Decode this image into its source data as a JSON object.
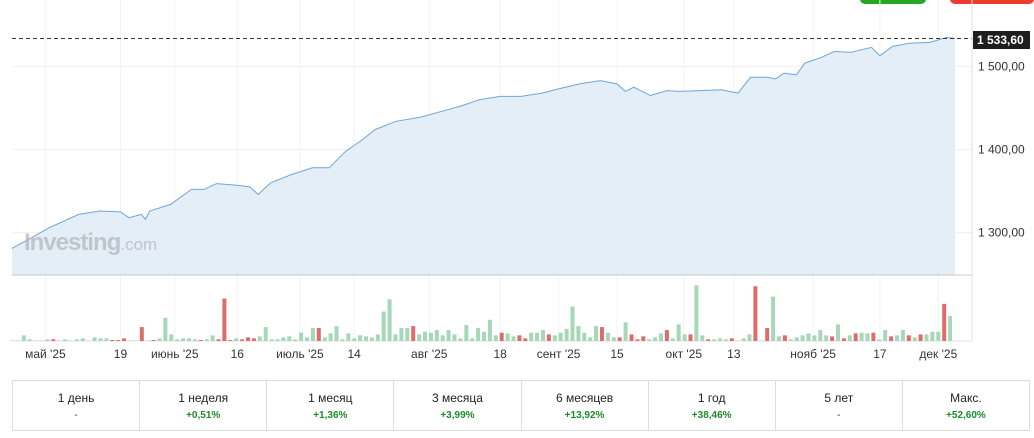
{
  "toolbar": {
    "buy_color": "#22a822",
    "sell_color": "#ee3b2f"
  },
  "watermark": {
    "brand": "Investing",
    "suffix": ".com"
  },
  "colors": {
    "line": "#6fa6d6",
    "area": "#e4eef7",
    "vol_up": "#a6d7b9",
    "vol_down": "#e06b6b",
    "vol_flat": "#dfe3e6",
    "positive": "#1a8a2c"
  },
  "chart_data": {
    "type": "area",
    "last_price_label": "1 533,60",
    "last_price": 1533.6,
    "ylim": [
      1249,
      1580
    ],
    "y_ticks": [
      {
        "value": 1300,
        "label": "1 300,00"
      },
      {
        "value": 1400,
        "label": "1 400,00"
      },
      {
        "value": 1500,
        "label": "1 500,00"
      }
    ],
    "x_range": [
      "2025-04-23",
      "2025-12-05"
    ],
    "x_ticks": [
      {
        "date": "2025-05-01",
        "label": "май '25"
      },
      {
        "date": "2025-05-19",
        "label": "19"
      },
      {
        "date": "2025-06-01",
        "label": "июнь '25"
      },
      {
        "date": "2025-06-16",
        "label": "16"
      },
      {
        "date": "2025-07-01",
        "label": "июль '25"
      },
      {
        "date": "2025-07-14",
        "label": "14"
      },
      {
        "date": "2025-08-01",
        "label": "авг '25"
      },
      {
        "date": "2025-08-18",
        "label": "18"
      },
      {
        "date": "2025-09-01",
        "label": "сент '25"
      },
      {
        "date": "2025-09-15",
        "label": "15"
      },
      {
        "date": "2025-10-01",
        "label": "окт '25"
      },
      {
        "date": "2025-10-13",
        "label": "13"
      },
      {
        "date": "2025-11-01",
        "label": "нояб '25"
      },
      {
        "date": "2025-11-17",
        "label": "17"
      },
      {
        "date": "2025-12-01",
        "label": "дек '25"
      }
    ],
    "price": [
      [
        "2025-04-23",
        1281
      ],
      [
        "2025-04-27",
        1292
      ],
      [
        "2025-05-02",
        1306
      ],
      [
        "2025-05-09",
        1322
      ],
      [
        "2025-05-14",
        1326
      ],
      [
        "2025-05-19",
        1325
      ],
      [
        "2025-05-21",
        1318
      ],
      [
        "2025-05-24",
        1322
      ],
      [
        "2025-05-25",
        1316
      ],
      [
        "2025-05-26",
        1326
      ],
      [
        "2025-05-31",
        1334
      ],
      [
        "2025-06-05",
        1352
      ],
      [
        "2025-06-08",
        1352
      ],
      [
        "2025-06-11",
        1359
      ],
      [
        "2025-06-16",
        1357
      ],
      [
        "2025-06-19",
        1355
      ],
      [
        "2025-06-21",
        1346
      ],
      [
        "2025-06-24",
        1360
      ],
      [
        "2025-06-29",
        1370
      ],
      [
        "2025-07-04",
        1378
      ],
      [
        "2025-07-08",
        1378
      ],
      [
        "2025-07-12",
        1398
      ],
      [
        "2025-07-16",
        1412
      ],
      [
        "2025-07-19",
        1424
      ],
      [
        "2025-07-24",
        1434
      ],
      [
        "2025-07-30",
        1439
      ],
      [
        "2025-08-04",
        1446
      ],
      [
        "2025-08-09",
        1453
      ],
      [
        "2025-08-13",
        1460
      ],
      [
        "2025-08-18",
        1464
      ],
      [
        "2025-08-23",
        1464
      ],
      [
        "2025-08-28",
        1468
      ],
      [
        "2025-09-01",
        1473
      ],
      [
        "2025-09-06",
        1479
      ],
      [
        "2025-09-11",
        1483
      ],
      [
        "2025-09-15",
        1479
      ],
      [
        "2025-09-17",
        1470
      ],
      [
        "2025-09-19",
        1475
      ],
      [
        "2025-09-23",
        1465
      ],
      [
        "2025-09-27",
        1471
      ],
      [
        "2025-09-30",
        1470
      ],
      [
        "2025-10-05",
        1471
      ],
      [
        "2025-10-10",
        1472
      ],
      [
        "2025-10-14",
        1468
      ],
      [
        "2025-10-17",
        1487
      ],
      [
        "2025-10-21",
        1487
      ],
      [
        "2025-10-23",
        1485
      ],
      [
        "2025-10-25",
        1492
      ],
      [
        "2025-10-28",
        1490
      ],
      [
        "2025-10-30",
        1504
      ],
      [
        "2025-11-03",
        1511
      ],
      [
        "2025-11-06",
        1518
      ],
      [
        "2025-11-10",
        1517
      ],
      [
        "2025-11-15",
        1523
      ],
      [
        "2025-11-17",
        1513
      ],
      [
        "2025-11-20",
        1524
      ],
      [
        "2025-11-24",
        1528
      ],
      [
        "2025-11-29",
        1529
      ],
      [
        "2025-12-03",
        1535
      ],
      [
        "2025-12-05",
        1533.6
      ]
    ],
    "volume": [
      [
        2,
        "flat"
      ],
      [
        2,
        "flat"
      ],
      [
        17,
        "up"
      ],
      [
        5,
        "up"
      ],
      [
        2,
        "flat"
      ],
      [
        2,
        "flat"
      ],
      [
        5,
        "up"
      ],
      [
        5,
        "down"
      ],
      [
        2,
        "flat"
      ],
      [
        5,
        "up"
      ],
      [
        3,
        "flat"
      ],
      [
        5,
        "up"
      ],
      [
        8,
        "up"
      ],
      [
        2,
        "flat"
      ],
      [
        11,
        "up"
      ],
      [
        8,
        "up"
      ],
      [
        8,
        "up"
      ],
      [
        3,
        "down"
      ],
      [
        3,
        "down"
      ],
      [
        8,
        "down"
      ],
      [
        2,
        "flat"
      ],
      [
        2,
        "flat"
      ],
      [
        42,
        "down"
      ],
      [
        2,
        "flat"
      ],
      [
        3,
        "down"
      ],
      [
        8,
        "up"
      ],
      [
        70,
        "up"
      ],
      [
        20,
        "up"
      ],
      [
        5,
        "up"
      ],
      [
        8,
        "up"
      ],
      [
        8,
        "up"
      ],
      [
        5,
        "up"
      ],
      [
        3,
        "down"
      ],
      [
        5,
        "up"
      ],
      [
        17,
        "up"
      ],
      [
        5,
        "down"
      ],
      [
        128,
        "down"
      ],
      [
        3,
        "down"
      ],
      [
        8,
        "up"
      ],
      [
        5,
        "down"
      ],
      [
        11,
        "down"
      ],
      [
        8,
        "down"
      ],
      [
        14,
        "up"
      ],
      [
        42,
        "up"
      ],
      [
        5,
        "up"
      ],
      [
        5,
        "up"
      ],
      [
        11,
        "up"
      ],
      [
        14,
        "up"
      ],
      [
        5,
        "up"
      ],
      [
        25,
        "up"
      ],
      [
        11,
        "up"
      ],
      [
        39,
        "up"
      ],
      [
        39,
        "down"
      ],
      [
        11,
        "up"
      ],
      [
        23,
        "up"
      ],
      [
        45,
        "up"
      ],
      [
        5,
        "up"
      ],
      [
        23,
        "up"
      ],
      [
        8,
        "up"
      ],
      [
        17,
        "up"
      ],
      [
        14,
        "up"
      ],
      [
        11,
        "up"
      ],
      [
        20,
        "up"
      ],
      [
        89,
        "up"
      ],
      [
        126,
        "up"
      ],
      [
        20,
        "up"
      ],
      [
        39,
        "up"
      ],
      [
        39,
        "up"
      ],
      [
        45,
        "down"
      ],
      [
        20,
        "up"
      ],
      [
        28,
        "up"
      ],
      [
        25,
        "up"
      ],
      [
        33,
        "up"
      ],
      [
        17,
        "up"
      ],
      [
        33,
        "up"
      ],
      [
        20,
        "up"
      ],
      [
        8,
        "up"
      ],
      [
        48,
        "up"
      ],
      [
        8,
        "up"
      ],
      [
        39,
        "up"
      ],
      [
        28,
        "up"
      ],
      [
        64,
        "up"
      ],
      [
        17,
        "up"
      ],
      [
        25,
        "down"
      ],
      [
        23,
        "up"
      ],
      [
        14,
        "up"
      ],
      [
        17,
        "down"
      ],
      [
        8,
        "down"
      ],
      [
        25,
        "up"
      ],
      [
        25,
        "up"
      ],
      [
        33,
        "up"
      ],
      [
        20,
        "down"
      ],
      [
        17,
        "up"
      ],
      [
        25,
        "up"
      ],
      [
        36,
        "up"
      ],
      [
        104,
        "up"
      ],
      [
        45,
        "up"
      ],
      [
        25,
        "up"
      ],
      [
        11,
        "up"
      ],
      [
        45,
        "up"
      ],
      [
        42,
        "down"
      ],
      [
        25,
        "up"
      ],
      [
        11,
        "up"
      ],
      [
        11,
        "down"
      ],
      [
        56,
        "up"
      ],
      [
        20,
        "down"
      ],
      [
        5,
        "down"
      ],
      [
        14,
        "down"
      ],
      [
        5,
        "up"
      ],
      [
        11,
        "up"
      ],
      [
        23,
        "up"
      ],
      [
        33,
        "down"
      ],
      [
        8,
        "up"
      ],
      [
        50,
        "up"
      ],
      [
        20,
        "up"
      ],
      [
        20,
        "down"
      ],
      [
        168,
        "up"
      ],
      [
        17,
        "up"
      ],
      [
        5,
        "down"
      ],
      [
        5,
        "up"
      ],
      [
        8,
        "up"
      ],
      [
        5,
        "up"
      ],
      [
        8,
        "down"
      ],
      [
        2,
        "flat"
      ],
      [
        8,
        "up"
      ],
      [
        20,
        "up"
      ],
      [
        165,
        "down"
      ],
      [
        2,
        "flat"
      ],
      [
        39,
        "down"
      ],
      [
        134,
        "up"
      ],
      [
        14,
        "up"
      ],
      [
        17,
        "down"
      ],
      [
        5,
        "up"
      ],
      [
        11,
        "up"
      ],
      [
        17,
        "up"
      ],
      [
        23,
        "up"
      ],
      [
        17,
        "up"
      ],
      [
        33,
        "up"
      ],
      [
        17,
        "up"
      ],
      [
        14,
        "down"
      ],
      [
        50,
        "up"
      ],
      [
        8,
        "down"
      ],
      [
        17,
        "up"
      ],
      [
        23,
        "down"
      ],
      [
        25,
        "up"
      ],
      [
        23,
        "up"
      ],
      [
        25,
        "down"
      ],
      [
        5,
        "up"
      ],
      [
        33,
        "up"
      ],
      [
        14,
        "down"
      ],
      [
        17,
        "up"
      ],
      [
        33,
        "up"
      ],
      [
        17,
        "down"
      ],
      [
        11,
        "up"
      ],
      [
        20,
        "down"
      ],
      [
        20,
        "up"
      ],
      [
        28,
        "up"
      ],
      [
        28,
        "up"
      ],
      [
        112,
        "down"
      ],
      [
        75,
        "up"
      ]
    ],
    "volume_max": 190
  },
  "periods": [
    {
      "label": "1 день",
      "value": "-",
      "tone": "neutral"
    },
    {
      "label": "1 неделя",
      "value": "+0,51%",
      "tone": "positive"
    },
    {
      "label": "1 месяц",
      "value": "+1,36%",
      "tone": "positive"
    },
    {
      "label": "3 месяца",
      "value": "+3,99%",
      "tone": "positive"
    },
    {
      "label": "6 месяцев",
      "value": "+13,92%",
      "tone": "positive"
    },
    {
      "label": "1 год",
      "value": "+38,46%",
      "tone": "positive"
    },
    {
      "label": "5 лет",
      "value": "-",
      "tone": "neutral"
    },
    {
      "label": "Макс.",
      "value": "+52,60%",
      "tone": "positive"
    }
  ]
}
